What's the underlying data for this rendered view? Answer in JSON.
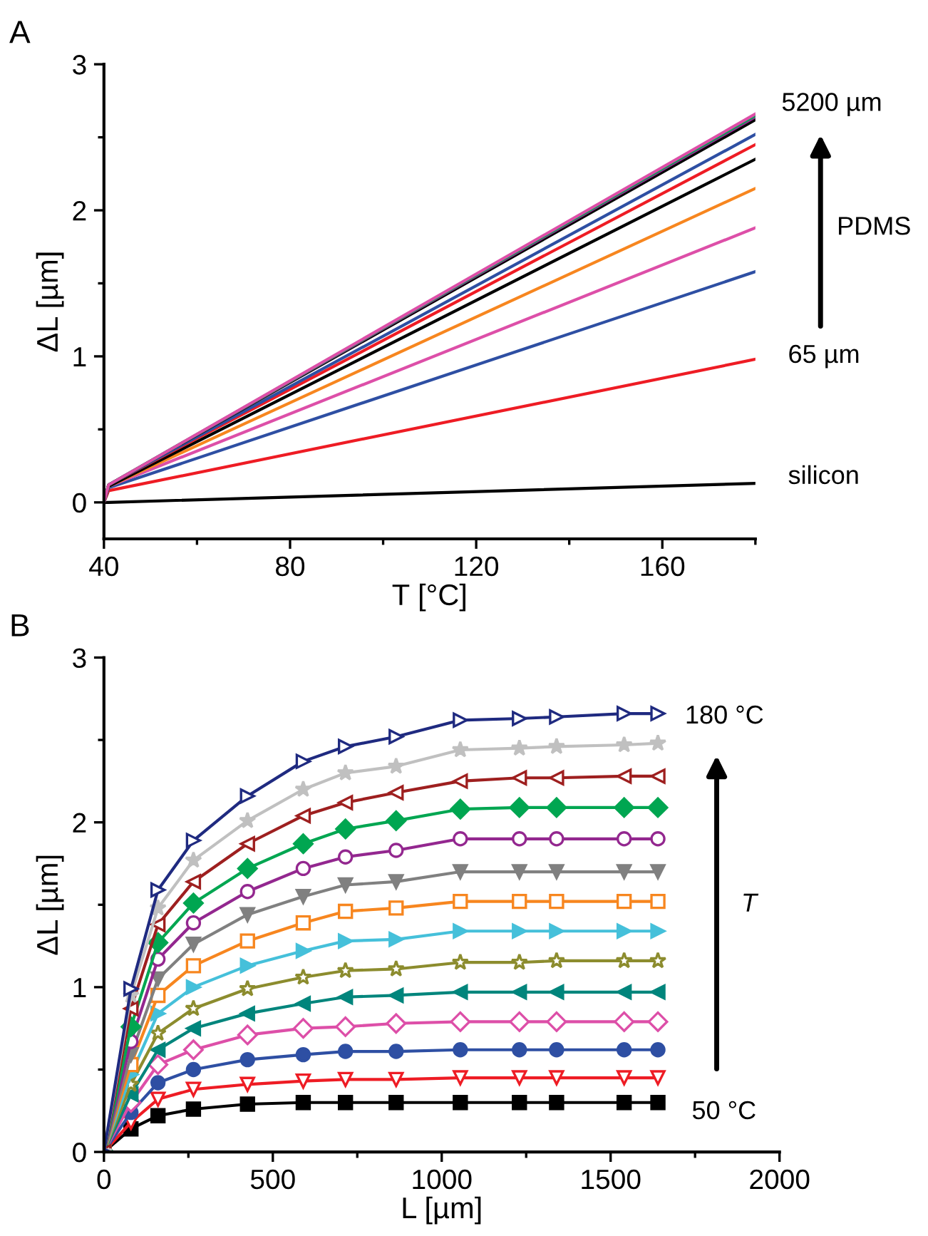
{
  "chart_data": [
    {
      "type": "line",
      "title": "A",
      "xlabel": "T [°C]",
      "ylabel": "ΔL [µm]",
      "xlim": [
        40,
        180
      ],
      "xticks": [
        40,
        80,
        120,
        160
      ],
      "ylim": [
        -0.25,
        3
      ],
      "yticks": [
        0,
        1,
        2,
        3
      ],
      "grid": false,
      "legend": false,
      "marker": "none",
      "line_style": "solid",
      "annotations": [
        "5200 µm",
        "PDMS",
        "65 µm",
        "silicon"
      ],
      "x": [
        40,
        41,
        180
      ],
      "series": [
        {
          "color": "#000000",
          "values": [
            0,
            0,
            0.13
          ]
        },
        {
          "color": "#ee1c24",
          "values": [
            0,
            0.08,
            0.98
          ]
        },
        {
          "color": "#2e4fa3",
          "values": [
            0,
            0.1,
            1.58
          ]
        },
        {
          "color": "#dd4fa8",
          "values": [
            0,
            0.11,
            1.88
          ]
        },
        {
          "color": "#f7861f",
          "values": [
            0,
            0.11,
            2.15
          ]
        },
        {
          "color": "#000000",
          "values": [
            0,
            0.11,
            2.35
          ]
        },
        {
          "color": "#ee1c24",
          "values": [
            0,
            0.12,
            2.45
          ]
        },
        {
          "color": "#2e4fa3",
          "values": [
            0,
            0.12,
            2.52
          ]
        },
        {
          "color": "#000000",
          "values": [
            0,
            0.12,
            2.62
          ]
        },
        {
          "color": "#93278f",
          "values": [
            0,
            0.12,
            2.64
          ]
        },
        {
          "color": "#00a651",
          "values": [
            0,
            0.12,
            2.65
          ]
        },
        {
          "color": "#dd4fa8",
          "values": [
            0,
            0.12,
            2.66
          ]
        }
      ]
    },
    {
      "type": "line",
      "title": "B",
      "xlabel": "L [µm]",
      "ylabel": "ΔL [µm]",
      "xlim": [
        0,
        2000
      ],
      "xticks": [
        0,
        500,
        1000,
        1500,
        2000
      ],
      "ylim": [
        0,
        3
      ],
      "yticks": [
        0,
        1,
        2,
        3
      ],
      "grid": false,
      "legend": false,
      "line_style": "solid",
      "annotations": [
        "180 °C",
        "T",
        "50 °C"
      ],
      "x": [
        0,
        80,
        160,
        265,
        425,
        590,
        715,
        865,
        1055,
        1230,
        1340,
        1540,
        1640
      ],
      "series": [
        {
          "color": "#000000",
          "marker": "square",
          "values": [
            0,
            0.14,
            0.22,
            0.26,
            0.29,
            0.3,
            0.3,
            0.3,
            0.3,
            0.3,
            0.3,
            0.3,
            0.3
          ]
        },
        {
          "color": "#ee1c24",
          "marker": "triangle-down-open",
          "values": [
            0,
            0.18,
            0.32,
            0.38,
            0.41,
            0.43,
            0.44,
            0.44,
            0.45,
            0.45,
            0.45,
            0.45,
            0.45
          ]
        },
        {
          "color": "#2e4fa3",
          "marker": "circle",
          "values": [
            0,
            0.24,
            0.42,
            0.5,
            0.56,
            0.59,
            0.61,
            0.61,
            0.62,
            0.62,
            0.62,
            0.62,
            0.62
          ]
        },
        {
          "color": "#dd4fa8",
          "marker": "diamond-open",
          "values": [
            0,
            0.3,
            0.53,
            0.62,
            0.71,
            0.75,
            0.76,
            0.78,
            0.79,
            0.79,
            0.79,
            0.79,
            0.79
          ]
        },
        {
          "color": "#00857c",
          "marker": "triangle-left",
          "values": [
            0,
            0.35,
            0.62,
            0.75,
            0.84,
            0.9,
            0.94,
            0.95,
            0.97,
            0.97,
            0.97,
            0.97,
            0.97
          ]
        },
        {
          "color": "#8c8c2e",
          "marker": "star-open",
          "values": [
            0,
            0.41,
            0.72,
            0.87,
            0.99,
            1.06,
            1.1,
            1.11,
            1.15,
            1.15,
            1.16,
            1.16,
            1.16
          ]
        },
        {
          "color": "#45c0da",
          "marker": "triangle-right",
          "values": [
            0,
            0.47,
            0.84,
            1.0,
            1.13,
            1.22,
            1.28,
            1.29,
            1.34,
            1.34,
            1.34,
            1.34,
            1.34
          ]
        },
        {
          "color": "#f7861f",
          "marker": "square-open",
          "values": [
            0,
            0.53,
            0.95,
            1.13,
            1.28,
            1.39,
            1.46,
            1.48,
            1.52,
            1.52,
            1.52,
            1.52,
            1.52
          ]
        },
        {
          "color": "#808080",
          "marker": "triangle-down",
          "values": [
            0,
            0.59,
            1.05,
            1.26,
            1.44,
            1.55,
            1.62,
            1.64,
            1.7,
            1.7,
            1.7,
            1.7,
            1.7
          ]
        },
        {
          "color": "#93278f",
          "marker": "circle-open",
          "values": [
            0,
            0.67,
            1.17,
            1.39,
            1.58,
            1.72,
            1.79,
            1.83,
            1.9,
            1.9,
            1.9,
            1.9,
            1.9
          ]
        },
        {
          "color": "#00a651",
          "marker": "diamond",
          "values": [
            0,
            0.76,
            1.27,
            1.51,
            1.72,
            1.87,
            1.96,
            2.01,
            2.08,
            2.09,
            2.09,
            2.09,
            2.09
          ]
        },
        {
          "color": "#9e1f1f",
          "marker": "triangle-left-open",
          "values": [
            0,
            0.87,
            1.38,
            1.64,
            1.87,
            2.04,
            2.12,
            2.18,
            2.25,
            2.27,
            2.27,
            2.28,
            2.28
          ]
        },
        {
          "color": "#c0c0c0",
          "marker": "star",
          "values": [
            0,
            0.95,
            1.48,
            1.77,
            2.01,
            2.2,
            2.3,
            2.34,
            2.44,
            2.45,
            2.46,
            2.47,
            2.48
          ]
        },
        {
          "color": "#1f2a80",
          "marker": "triangle-right-open",
          "values": [
            0,
            0.99,
            1.59,
            1.89,
            2.16,
            2.37,
            2.46,
            2.52,
            2.62,
            2.63,
            2.64,
            2.66,
            2.66
          ]
        }
      ]
    }
  ]
}
